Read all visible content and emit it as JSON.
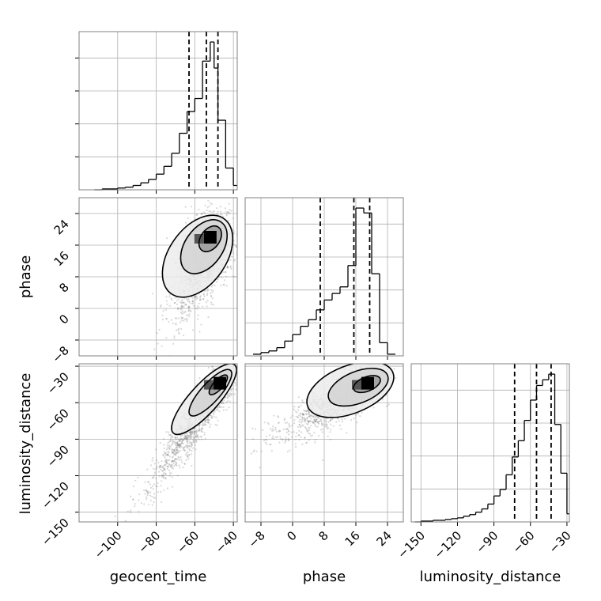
{
  "chart_data": {
    "type": "corner",
    "parameters": [
      "geocent_time",
      "phase",
      "luminosity_distance"
    ],
    "axis_labels": {
      "x": [
        "geocent_time",
        "phase",
        "luminosity_distance"
      ],
      "y_row1": "phase",
      "y_row2": "luminosity_distance"
    },
    "ranges": {
      "geocent_time": [
        -120,
        -38
      ],
      "phase": [
        -12,
        28
      ],
      "luminosity_distance": [
        -158,
        -28
      ]
    },
    "ticks": {
      "geocent_time": [
        -100,
        -80,
        -60,
        -40
      ],
      "phase": [
        -8,
        0,
        8,
        16,
        24
      ],
      "luminosity_distance": [
        -150,
        -120,
        -90,
        -60,
        -30
      ]
    },
    "tick_labels": {
      "geocent_time": [
        "−100",
        "−80",
        "−60",
        "−40"
      ],
      "phase": [
        "−8",
        "0",
        "8",
        "16",
        "24"
      ],
      "luminosity_distance": [
        "−150",
        "−120",
        "−90",
        "−60",
        "−30"
      ]
    },
    "quantiles": {
      "geocent_time": [
        -63,
        -54,
        -48
      ],
      "phase": [
        7,
        15.5,
        19.5
      ],
      "luminosity_distance": [
        -73,
        -55,
        -43
      ]
    },
    "histograms": {
      "geocent_time": {
        "edges": [
          -112,
          -108,
          -104,
          -100,
          -96,
          -92,
          -88,
          -84,
          -80,
          -76,
          -72,
          -68,
          -64,
          -60,
          -56,
          -52,
          -50,
          -48,
          -44,
          -40,
          -38
        ],
        "counts": [
          0,
          1,
          1,
          2,
          3,
          5,
          8,
          12,
          18,
          27,
          42,
          65,
          90,
          105,
          148,
          170,
          140,
          80,
          25,
          5
        ]
      },
      "phase": {
        "edges": [
          -10,
          -8,
          -6,
          -4,
          -2,
          0,
          2,
          4,
          6,
          8,
          10,
          12,
          14,
          16,
          18,
          20,
          22,
          24,
          26
        ],
        "counts": [
          1,
          2,
          3,
          5,
          9,
          13,
          18,
          22,
          28,
          34,
          38,
          42,
          55,
          90,
          87,
          50,
          8,
          1
        ]
      },
      "luminosity_distance": {
        "edges": [
          -155,
          -150,
          -145,
          -140,
          -135,
          -130,
          -125,
          -120,
          -115,
          -110,
          -105,
          -100,
          -95,
          -90,
          -85,
          -80,
          -75,
          -70,
          -65,
          -60,
          -55,
          -50,
          -45,
          -40,
          -35,
          -30,
          -28
        ],
        "counts": [
          0,
          1,
          1,
          2,
          2,
          3,
          4,
          5,
          7,
          9,
          12,
          16,
          22,
          32,
          40,
          58,
          80,
          100,
          125,
          150,
          168,
          175,
          182,
          120,
          60,
          10
        ]
      }
    },
    "density_peaks": {
      "phase_vs_geocent_time": {
        "x": -52,
        "y": 18
      },
      "luminosity_distance_vs_geocent_time": {
        "x": -47,
        "y": -44
      },
      "luminosity_distance_vs_phase": {
        "x": 19,
        "y": -44
      }
    },
    "grid": true
  }
}
